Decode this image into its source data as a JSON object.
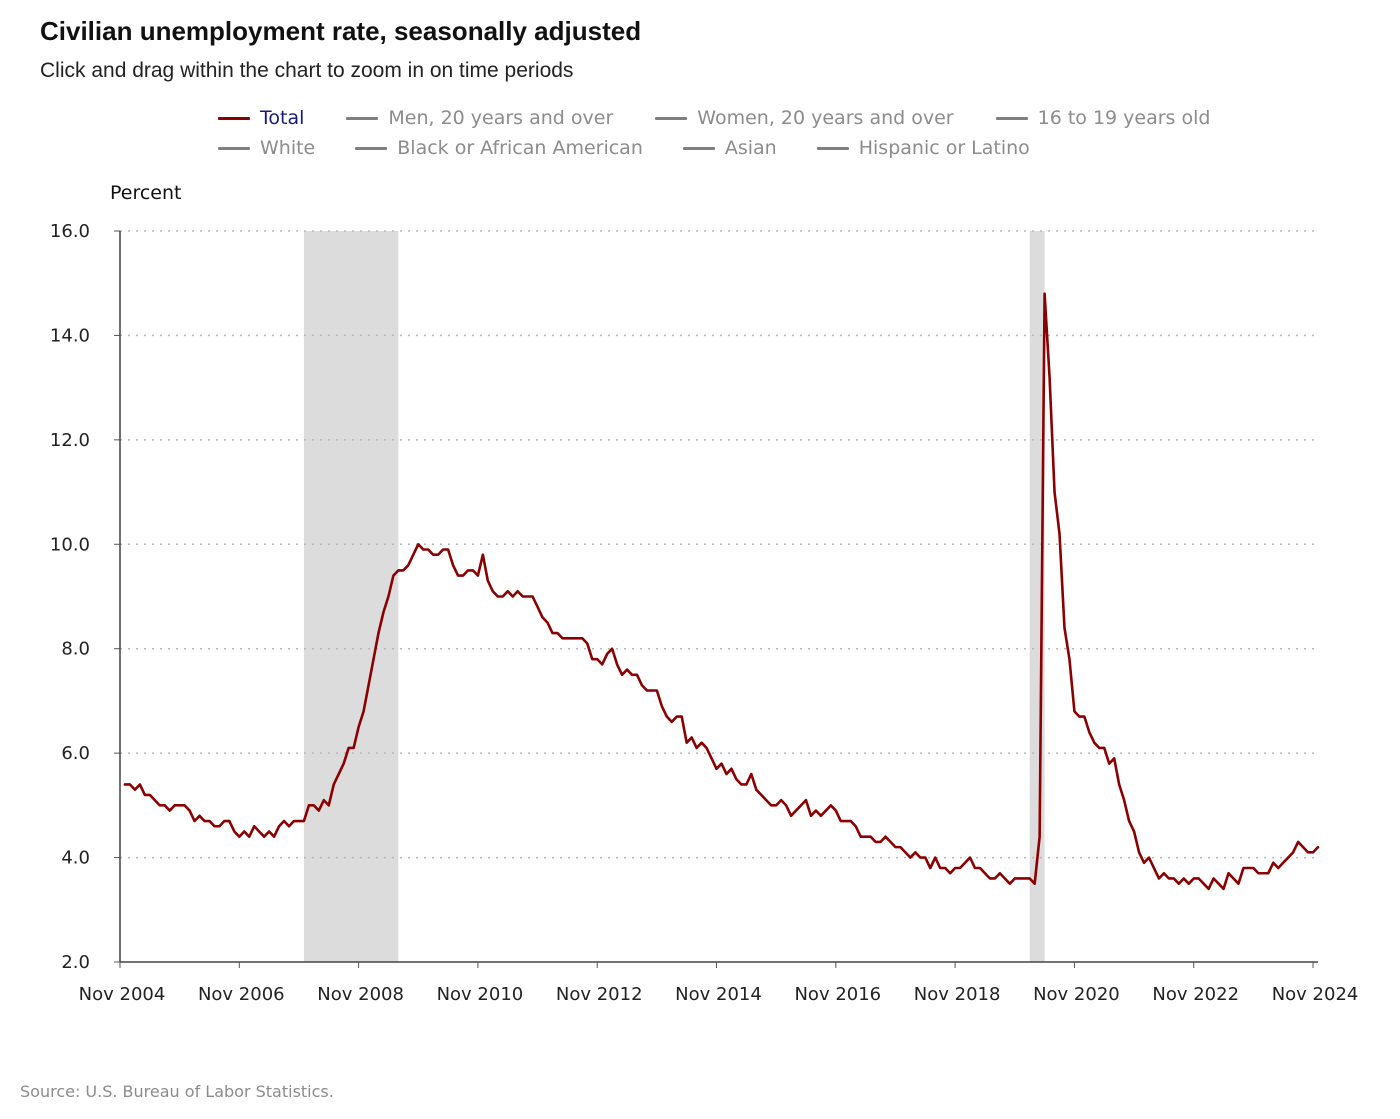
{
  "page": {
    "title": "Civilian unemployment rate, seasonally adjusted",
    "subtitle": "Click and drag within the chart to zoom in on time periods",
    "source": "Source: U.S. Bureau of Labor Statistics."
  },
  "legend": {
    "row1": [
      "Total",
      "Men, 20 years and over",
      "Women, 20 years and over",
      "16 to 19 years old"
    ],
    "row2": [
      "White",
      "Black or African American",
      "Asian",
      "Hispanic or Latino"
    ],
    "active": "Total"
  },
  "colors": {
    "total_line": "#8b0000",
    "inactive_legend": "#7f7f7f",
    "recession_band": "#dcdcdc",
    "active_legend_text": "#1a1a7a"
  },
  "chart_data": {
    "type": "line",
    "ylabel": "Percent",
    "ylim": [
      2.0,
      16.0
    ],
    "yticks": [
      "2.0",
      "4.0",
      "6.0",
      "8.0",
      "10.0",
      "12.0",
      "14.0",
      "16.0"
    ],
    "xticks": [
      "Nov 2004",
      "Nov 2006",
      "Nov 2008",
      "Nov 2010",
      "Nov 2012",
      "Nov 2014",
      "Nov 2016",
      "Nov 2018",
      "Nov 2020",
      "Nov 2022",
      "Nov 2024"
    ],
    "xlim": [
      "2004-11",
      "2024-12"
    ],
    "grid": "horizontal dotted",
    "recessions": [
      {
        "start": "2007-12",
        "end": "2009-06"
      },
      {
        "start": "2020-02",
        "end": "2020-04"
      }
    ],
    "series": [
      {
        "name": "Total",
        "start": "2004-12",
        "frequency": "monthly",
        "values": [
          5.4,
          5.4,
          5.3,
          5.4,
          5.2,
          5.2,
          5.1,
          5.0,
          5.0,
          4.9,
          5.0,
          5.0,
          5.0,
          4.9,
          4.7,
          4.8,
          4.7,
          4.7,
          4.6,
          4.6,
          4.7,
          4.7,
          4.5,
          4.4,
          4.5,
          4.4,
          4.6,
          4.5,
          4.4,
          4.5,
          4.4,
          4.6,
          4.7,
          4.6,
          4.7,
          4.7,
          4.7,
          5.0,
          5.0,
          4.9,
          5.1,
          5.0,
          5.4,
          5.6,
          5.8,
          6.1,
          6.1,
          6.5,
          6.8,
          7.3,
          7.8,
          8.3,
          8.7,
          9.0,
          9.4,
          9.5,
          9.5,
          9.6,
          9.8,
          10.0,
          9.9,
          9.9,
          9.8,
          9.8,
          9.9,
          9.9,
          9.6,
          9.4,
          9.4,
          9.5,
          9.5,
          9.4,
          9.8,
          9.3,
          9.1,
          9.0,
          9.0,
          9.1,
          9.0,
          9.1,
          9.0,
          9.0,
          9.0,
          8.8,
          8.6,
          8.5,
          8.3,
          8.3,
          8.2,
          8.2,
          8.2,
          8.2,
          8.2,
          8.1,
          7.8,
          7.8,
          7.7,
          7.9,
          8.0,
          7.7,
          7.5,
          7.6,
          7.5,
          7.5,
          7.3,
          7.2,
          7.2,
          7.2,
          6.9,
          6.7,
          6.6,
          6.7,
          6.7,
          6.2,
          6.3,
          6.1,
          6.2,
          6.1,
          5.9,
          5.7,
          5.8,
          5.6,
          5.7,
          5.5,
          5.4,
          5.4,
          5.6,
          5.3,
          5.2,
          5.1,
          5.0,
          5.0,
          5.1,
          5.0,
          4.8,
          4.9,
          5.0,
          5.1,
          4.8,
          4.9,
          4.8,
          4.9,
          5.0,
          4.9,
          4.7,
          4.7,
          4.7,
          4.6,
          4.4,
          4.4,
          4.4,
          4.3,
          4.3,
          4.4,
          4.3,
          4.2,
          4.2,
          4.1,
          4.0,
          4.1,
          4.0,
          4.0,
          3.8,
          4.0,
          3.8,
          3.8,
          3.7,
          3.8,
          3.8,
          3.9,
          4.0,
          3.8,
          3.8,
          3.7,
          3.6,
          3.6,
          3.7,
          3.6,
          3.5,
          3.6,
          3.6,
          3.6,
          3.6,
          3.5,
          4.4,
          14.8,
          13.2,
          11.0,
          10.2,
          8.4,
          7.8,
          6.8,
          6.7,
          6.7,
          6.4,
          6.2,
          6.1,
          6.1,
          5.8,
          5.9,
          5.4,
          5.1,
          4.7,
          4.5,
          4.1,
          3.9,
          4.0,
          3.8,
          3.6,
          3.7,
          3.6,
          3.6,
          3.5,
          3.6,
          3.5,
          3.6,
          3.6,
          3.5,
          3.4,
          3.6,
          3.5,
          3.4,
          3.7,
          3.6,
          3.5,
          3.8,
          3.8,
          3.8,
          3.7,
          3.7,
          3.7,
          3.9,
          3.8,
          3.9,
          4.0,
          4.1,
          4.3,
          4.2,
          4.1,
          4.1,
          4.2
        ]
      }
    ]
  }
}
